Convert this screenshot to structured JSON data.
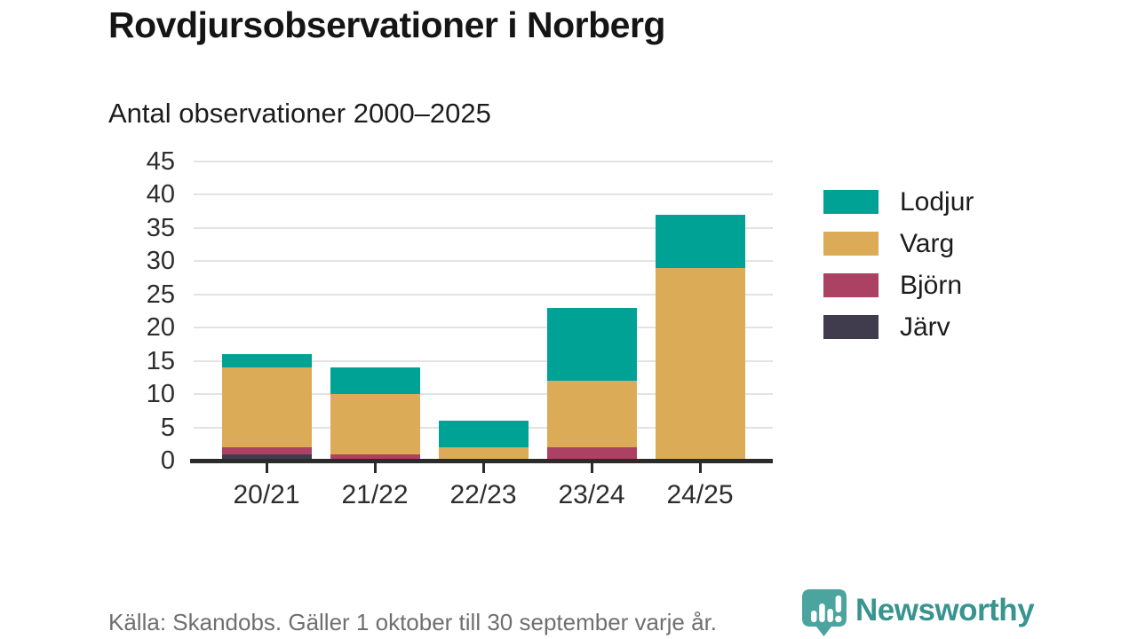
{
  "header": {
    "title": "Rovdjursobservationer i Norberg",
    "subtitle": "Antal observationer 2000–2025"
  },
  "chart_data": {
    "type": "bar",
    "stacked": true,
    "title": "Rovdjursobservationer i Norberg",
    "subtitle": "Antal observationer 2000–2025",
    "categories": [
      "20/21",
      "21/22",
      "22/23",
      "23/24",
      "24/25"
    ],
    "series": [
      {
        "name": "Lodjur",
        "color": "#00a296",
        "values": [
          2,
          4,
          4,
          11,
          8
        ]
      },
      {
        "name": "Varg",
        "color": "#dcab58",
        "values": [
          12,
          9,
          2,
          10,
          29
        ]
      },
      {
        "name": "Björn",
        "color": "#ab4163",
        "values": [
          1,
          1,
          0,
          2,
          0
        ]
      },
      {
        "name": "Järv",
        "color": "#403c4e",
        "values": [
          1,
          0,
          0,
          0,
          0
        ]
      }
    ],
    "stack_order_bottom_to_top": [
      "Järv",
      "Björn",
      "Varg",
      "Lodjur"
    ],
    "totals": [
      16,
      14,
      6,
      23,
      37
    ],
    "xlabel": "",
    "ylabel": "",
    "ylim": [
      0,
      45
    ],
    "ytick_step": 5,
    "yticks": [
      0,
      5,
      10,
      15,
      20,
      25,
      30,
      35,
      40,
      45
    ],
    "grid": "horizontal",
    "legend_position": "right"
  },
  "footer": {
    "source": "Källa: Skandobs. Gäller 1 oktober till 30 september varje år.",
    "brand": "Newsworthy"
  },
  "icons": {
    "brand_icon": "newsworthy-speech-bubble-bar-chart-icon"
  },
  "colors": {
    "axis": "#2b2b2b",
    "grid": "#e3e3e3",
    "tick_text": "#2d2d2d",
    "title_text": "#151515",
    "muted_text": "#6f6f6f",
    "brand_teal": "#38948e",
    "brand_icon_teal": "#4ba49e",
    "background": "#ffffff"
  }
}
